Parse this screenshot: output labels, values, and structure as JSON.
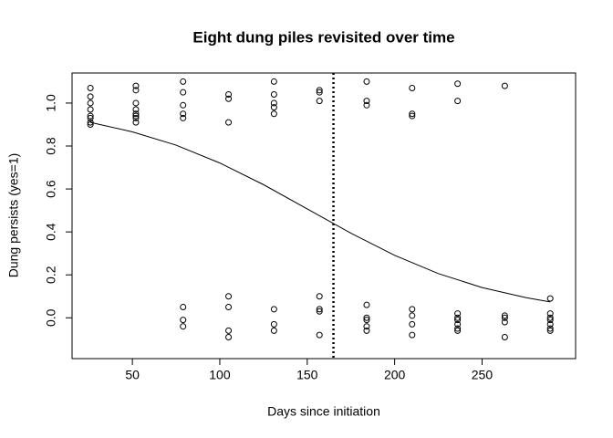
{
  "chart_data": {
    "type": "scatter",
    "title": "Eight dung piles revisited over time",
    "xlabel": "Days since initiation",
    "ylabel": "Dung persists (yes=1)",
    "xlim": [
      15.5,
      303.5
    ],
    "ylim": [
      -0.19,
      1.14
    ],
    "xticks": [
      50,
      100,
      150,
      200,
      250
    ],
    "yticks": [
      {
        "value": 0,
        "label": "0.0"
      },
      0.2,
      0.4,
      0.6,
      0.8,
      {
        "value": 1,
        "label": "1.0"
      }
    ],
    "color": "#000000",
    "x": [
      26,
      26,
      26,
      26,
      26,
      26,
      26,
      26,
      52,
      52,
      52,
      52,
      52,
      52,
      52,
      52,
      79,
      79,
      79,
      79,
      79,
      79,
      79,
      79,
      105,
      105,
      105,
      105,
      105,
      105,
      105,
      131,
      131,
      131,
      131,
      131,
      131,
      131,
      131,
      157,
      157,
      157,
      157,
      157,
      157,
      157,
      184,
      184,
      184,
      184,
      184,
      184,
      184,
      184,
      210,
      210,
      210,
      210,
      210,
      210,
      210,
      236,
      236,
      236,
      236,
      236,
      236,
      236,
      236,
      263,
      263,
      263,
      263,
      263,
      289,
      289,
      289,
      289,
      289,
      289,
      289
    ],
    "values": [
      1.07,
      1.03,
      1.0,
      0.97,
      0.94,
      0.93,
      0.91,
      0.9,
      1.08,
      1.06,
      1.0,
      0.97,
      0.94,
      0.93,
      0.91,
      0.95,
      1.1,
      1.05,
      0.99,
      0.95,
      0.93,
      0.05,
      -0.01,
      -0.04,
      1.04,
      1.02,
      0.91,
      0.1,
      0.05,
      -0.06,
      -0.09,
      1.1,
      1.04,
      1.0,
      0.98,
      0.95,
      0.04,
      -0.03,
      -0.06,
      1.06,
      1.05,
      1.01,
      0.1,
      0.04,
      0.03,
      -0.08,
      1.1,
      1.01,
      0.99,
      0.06,
      0.0,
      -0.01,
      -0.04,
      -0.06,
      1.07,
      0.95,
      0.94,
      0.04,
      0.01,
      -0.03,
      -0.08,
      1.09,
      1.01,
      0.02,
      0.0,
      -0.01,
      -0.03,
      -0.05,
      -0.06,
      1.08,
      0.01,
      0.0,
      -0.02,
      -0.09,
      0.09,
      0.02,
      0.0,
      -0.01,
      -0.03,
      -0.05,
      -0.06
    ],
    "curve": {
      "x": [
        26,
        50,
        75,
        100,
        125,
        150,
        175,
        200,
        225,
        250,
        275,
        289
      ],
      "values": [
        0.91,
        0.866,
        0.804,
        0.721,
        0.62,
        0.507,
        0.394,
        0.291,
        0.206,
        0.141,
        0.094,
        0.074
      ]
    },
    "vline": 165
  }
}
